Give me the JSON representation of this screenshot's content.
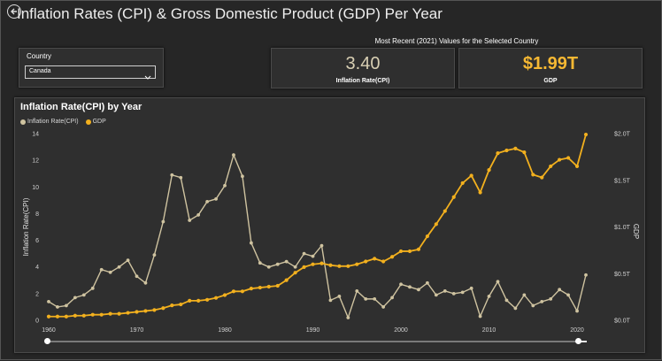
{
  "header": {
    "title": "Inflation Rates (CPI) & Gross Domestic Product (GDP) Per Year",
    "back_icon": "back-arrow-icon"
  },
  "slicer": {
    "label": "Country",
    "selected": "Canada"
  },
  "kpi": {
    "caption": "Most Recent (2021) Values for the Selected Country",
    "cards": [
      {
        "value": "3.40",
        "label": "Inflation Rate(CPI)"
      },
      {
        "value": "$1.99T",
        "label": "GDP"
      }
    ]
  },
  "colors": {
    "cpi": "#cfc3a0",
    "gdp": "#f2b01e",
    "background": "#262626",
    "panel": "#2f2f2f"
  },
  "range_slider": {
    "start": 1960,
    "end": 2020
  },
  "chart_data": {
    "type": "line",
    "title": "Inflation Rate(CPI) by Year",
    "legend": [
      "Inflation Rate(CPI)",
      "GDP"
    ],
    "legend_position": "top-left",
    "xlabel": "",
    "ylabel": "Inflation Rate(CPI)",
    "y2label": "GDP",
    "xlim": [
      1960,
      2021
    ],
    "ylim": [
      0,
      14
    ],
    "y2lim": [
      0,
      2.0
    ],
    "x_ticks": [
      "1960",
      "1970",
      "1980",
      "1990",
      "2000",
      "2010",
      "2020"
    ],
    "y_ticks": [
      "0",
      "2",
      "4",
      "6",
      "8",
      "10",
      "12",
      "14"
    ],
    "y2_ticks": [
      "$0.0T",
      "$0.5T",
      "$1.0T",
      "$1.5T",
      "$2.0T"
    ],
    "grid": false,
    "x": [
      1960,
      1961,
      1962,
      1963,
      1964,
      1965,
      1966,
      1967,
      1968,
      1969,
      1970,
      1971,
      1972,
      1973,
      1974,
      1975,
      1976,
      1977,
      1978,
      1979,
      1980,
      1981,
      1982,
      1983,
      1984,
      1985,
      1986,
      1987,
      1988,
      1989,
      1990,
      1991,
      1992,
      1993,
      1994,
      1995,
      1996,
      1997,
      1998,
      1999,
      2000,
      2001,
      2002,
      2003,
      2004,
      2005,
      2006,
      2007,
      2008,
      2009,
      2010,
      2011,
      2012,
      2013,
      2014,
      2015,
      2016,
      2017,
      2018,
      2019,
      2020,
      2021
    ],
    "series": [
      {
        "name": "Inflation Rate(CPI)",
        "axis": "left",
        "values": [
          1.4,
          1.0,
          1.1,
          1.7,
          1.9,
          2.4,
          3.8,
          3.6,
          4.0,
          4.5,
          3.3,
          2.8,
          4.9,
          7.4,
          10.9,
          10.7,
          7.5,
          7.9,
          8.9,
          9.1,
          10.1,
          12.4,
          10.8,
          5.8,
          4.3,
          4.0,
          4.2,
          4.4,
          4.0,
          5.0,
          4.8,
          5.6,
          1.5,
          1.8,
          0.2,
          2.2,
          1.6,
          1.6,
          1.0,
          1.7,
          2.7,
          2.5,
          2.3,
          2.8,
          1.9,
          2.2,
          2.0,
          2.1,
          2.4,
          0.3,
          1.8,
          2.9,
          1.5,
          0.9,
          1.9,
          1.1,
          1.4,
          1.6,
          2.3,
          1.9,
          0.7,
          3.4
        ]
      },
      {
        "name": "GDP",
        "axis": "right",
        "unit": "trillion USD",
        "values": [
          0.04,
          0.04,
          0.04,
          0.05,
          0.05,
          0.06,
          0.06,
          0.07,
          0.07,
          0.08,
          0.09,
          0.1,
          0.11,
          0.13,
          0.16,
          0.17,
          0.21,
          0.21,
          0.22,
          0.24,
          0.27,
          0.31,
          0.31,
          0.34,
          0.35,
          0.36,
          0.37,
          0.43,
          0.51,
          0.57,
          0.6,
          0.61,
          0.59,
          0.58,
          0.58,
          0.6,
          0.63,
          0.66,
          0.63,
          0.68,
          0.74,
          0.74,
          0.76,
          0.9,
          1.03,
          1.17,
          1.32,
          1.47,
          1.55,
          1.37,
          1.61,
          1.79,
          1.82,
          1.84,
          1.8,
          1.56,
          1.53,
          1.65,
          1.72,
          1.74,
          1.65,
          1.99
        ]
      }
    ]
  }
}
